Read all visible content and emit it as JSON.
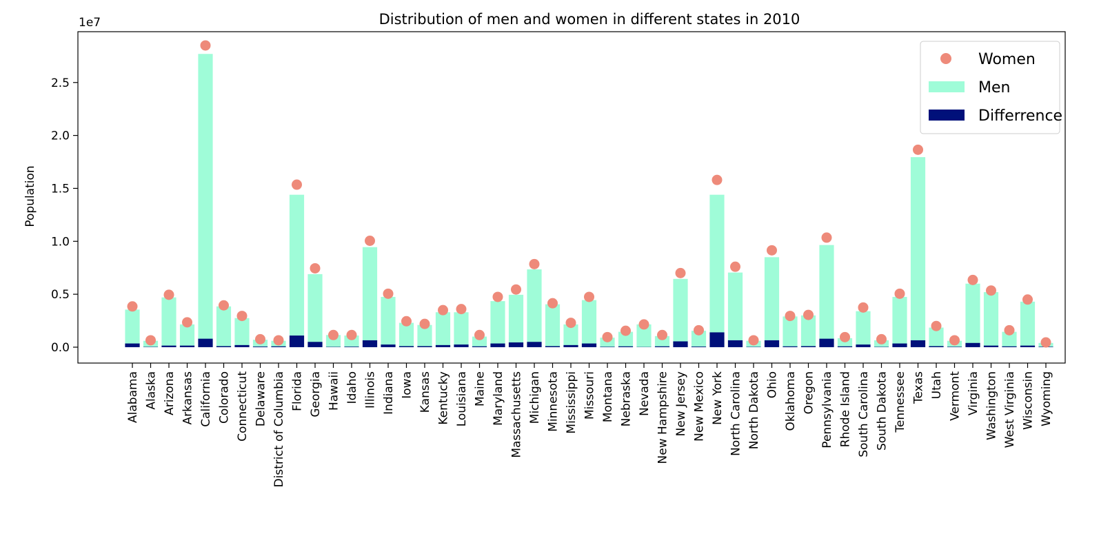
{
  "chart_data": {
    "type": "bar",
    "title": "Distribution of men and women in different states in 2010",
    "xlabel": "",
    "ylabel": "Population",
    "y_offset_label": "1e7",
    "ylim": [
      -1500000,
      29800000
    ],
    "y_ticks": [
      0.0,
      0.5,
      1.0,
      1.5,
      2.0,
      2.5
    ],
    "y_tick_multiplier": 10000000,
    "grid": false,
    "legend_position": "top-right",
    "categories": [
      "Alabama",
      "Alaska",
      "Arizona",
      "Arkansas",
      "California",
      "Colorado",
      "Connecticut",
      "Delaware",
      "District of Columbia",
      "Florida",
      "Georgia",
      "Hawaii",
      "Idaho",
      "Illinois",
      "Indiana",
      "Iowa",
      "Kansas",
      "Kentucky",
      "Louisiana",
      "Maine",
      "Maryland",
      "Massachusetts",
      "Michigan",
      "Minnesota",
      "Mississippi",
      "Missouri",
      "Montana",
      "Nebraska",
      "Nevada",
      "New Hampshire",
      "New Jersey",
      "New Mexico",
      "New York",
      "North Carolina",
      "North Dakota",
      "Ohio",
      "Oklahoma",
      "Oregon",
      "Pennsylvania",
      "Rhode Island",
      "South Carolina",
      "South Dakota",
      "Tennessee",
      "Texas",
      "Utah",
      "Vermont",
      "Virginia",
      "Washington",
      "West Virginia",
      "Wisconsin",
      "Wyoming"
    ],
    "series": [
      {
        "name": "Men",
        "kind": "bar",
        "color": "#9ffcd8",
        "values": [
          3550000,
          600000,
          4700000,
          2150000,
          27700000,
          3850000,
          2750000,
          700000,
          600000,
          14400000,
          6900000,
          1150000,
          1100000,
          9450000,
          4750000,
          2300000,
          2100000,
          3300000,
          3300000,
          1000000,
          4350000,
          4950000,
          7350000,
          4050000,
          2150000,
          4450000,
          900000,
          1450000,
          2150000,
          1050000,
          6450000,
          1550000,
          14400000,
          7050000,
          600000,
          8500000,
          2900000,
          3000000,
          9650000,
          850000,
          3400000,
          650000,
          4750000,
          17950000,
          1850000,
          600000,
          6000000,
          5200000,
          1450000,
          4300000,
          400000
        ]
      },
      {
        "name": "Women",
        "kind": "scatter",
        "color": "#ee8a7a",
        "values": [
          3850000,
          650000,
          4950000,
          2350000,
          28500000,
          3950000,
          2950000,
          750000,
          650000,
          15350000,
          7450000,
          1150000,
          1150000,
          10050000,
          5050000,
          2450000,
          2200000,
          3500000,
          3600000,
          1150000,
          4750000,
          5450000,
          7850000,
          4150000,
          2300000,
          4750000,
          950000,
          1550000,
          2150000,
          1150000,
          7000000,
          1600000,
          15800000,
          7600000,
          650000,
          9150000,
          2950000,
          3050000,
          10350000,
          950000,
          3750000,
          750000,
          5050000,
          18650000,
          2000000,
          650000,
          6350000,
          5350000,
          1600000,
          4500000,
          450000
        ]
      },
      {
        "name": "Differrence",
        "kind": "bar",
        "color": "#00107a",
        "values": [
          350000,
          30000,
          150000,
          150000,
          800000,
          100000,
          200000,
          60000,
          80000,
          1100000,
          500000,
          30000,
          50000,
          650000,
          250000,
          100000,
          100000,
          200000,
          250000,
          80000,
          350000,
          450000,
          500000,
          100000,
          200000,
          350000,
          40000,
          80000,
          20000,
          80000,
          550000,
          60000,
          1400000,
          650000,
          30000,
          650000,
          80000,
          100000,
          800000,
          80000,
          250000,
          30000,
          350000,
          650000,
          100000,
          40000,
          400000,
          150000,
          80000,
          150000,
          40000
        ]
      }
    ]
  }
}
